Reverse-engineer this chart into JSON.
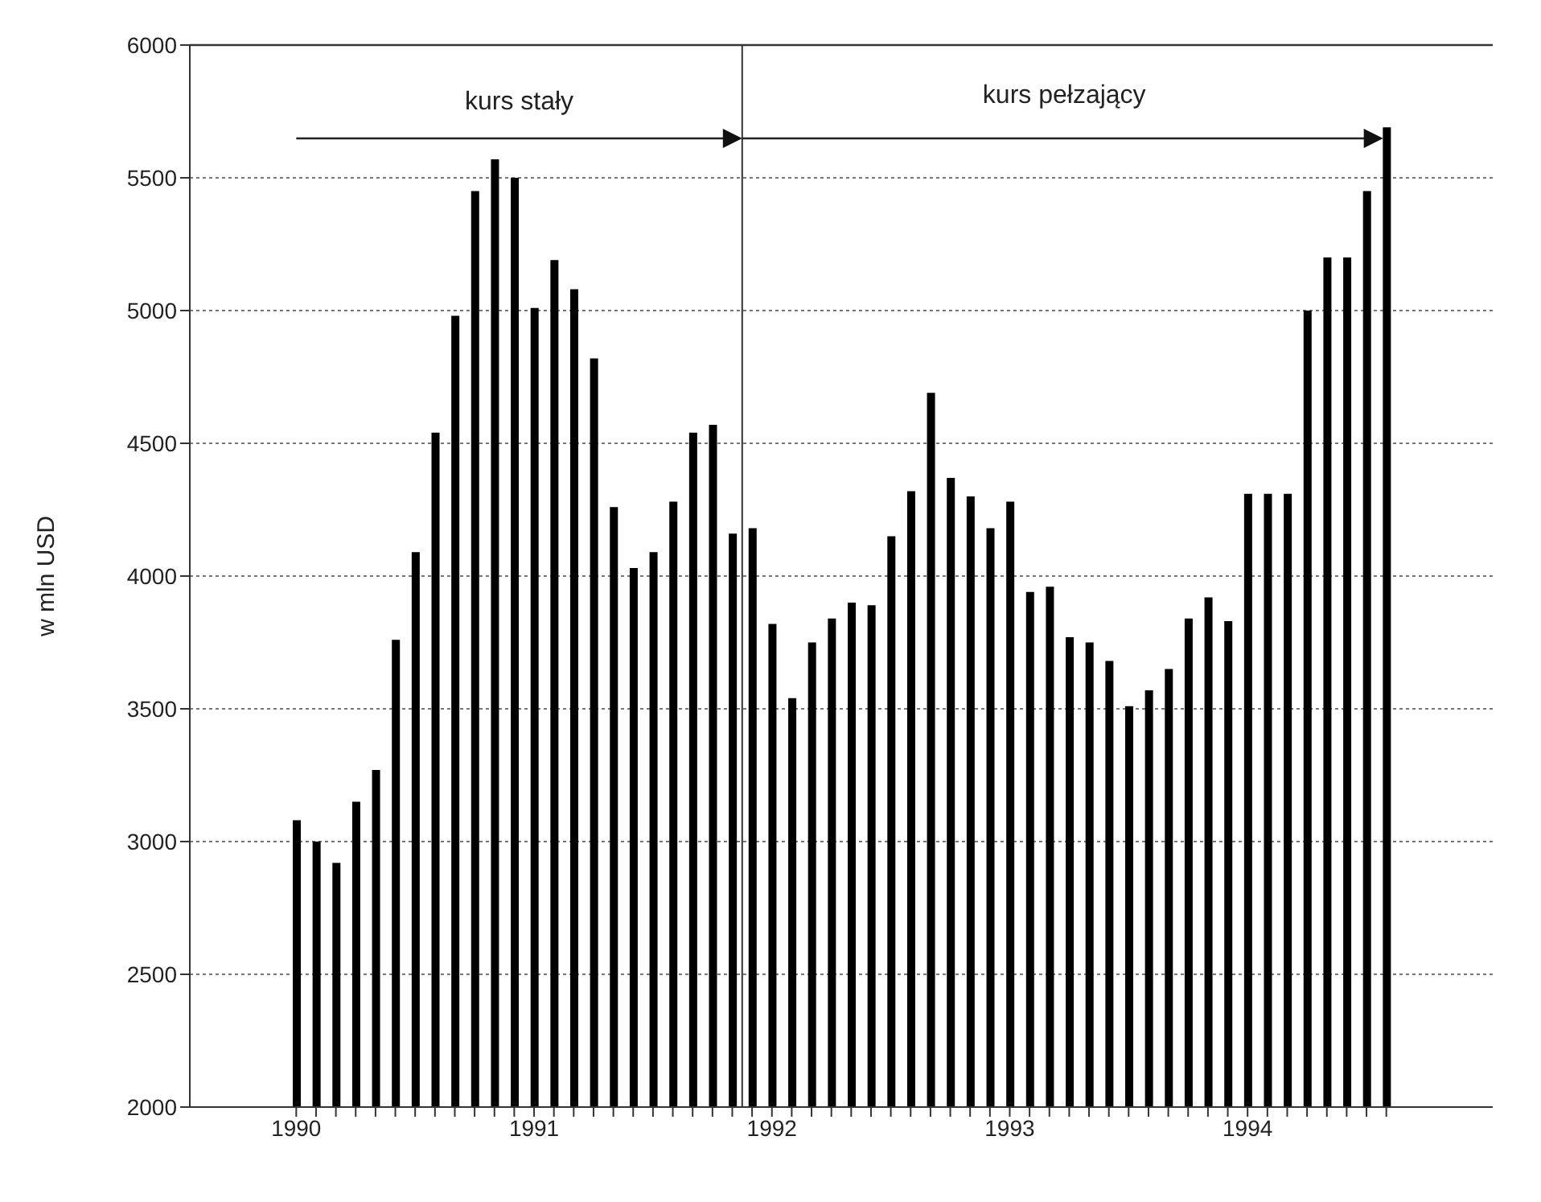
{
  "chart_data": {
    "type": "bar",
    "ylabel": "w mln USD",
    "categories": [
      "1990",
      null,
      null,
      null,
      null,
      null,
      null,
      null,
      null,
      null,
      null,
      null,
      "1991",
      null,
      null,
      null,
      null,
      null,
      null,
      null,
      null,
      null,
      null,
      null,
      "1992",
      null,
      null,
      null,
      null,
      null,
      null,
      null,
      null,
      null,
      null,
      null,
      "1993",
      null,
      null,
      null,
      null,
      null,
      null,
      null,
      null,
      null,
      null,
      null,
      "1994",
      null,
      null,
      null,
      null,
      null,
      null,
      null
    ],
    "values": [
      3080,
      3000,
      2920,
      3150,
      3270,
      3760,
      4090,
      4540,
      4980,
      5450,
      5570,
      5500,
      5010,
      5190,
      5080,
      4820,
      4260,
      4030,
      4090,
      4280,
      4540,
      4570,
      4160,
      4180,
      3820,
      3540,
      3750,
      3840,
      3900,
      3890,
      4150,
      4320,
      4690,
      4370,
      4300,
      4180,
      4280,
      3940,
      3960,
      3770,
      3750,
      3680,
      3510,
      3570,
      3650,
      3840,
      3920,
      3830,
      4310,
      4310,
      4310,
      5000,
      5200,
      5200,
      5450,
      5690
    ],
    "color": "#000000",
    "ylim": [
      2000,
      6000
    ],
    "yticks": [
      2000,
      2500,
      3000,
      3500,
      4000,
      4500,
      5000,
      5500,
      6000
    ],
    "grid": "y",
    "annotations": [
      "kurs stały",
      "kurs pełzający"
    ]
  }
}
